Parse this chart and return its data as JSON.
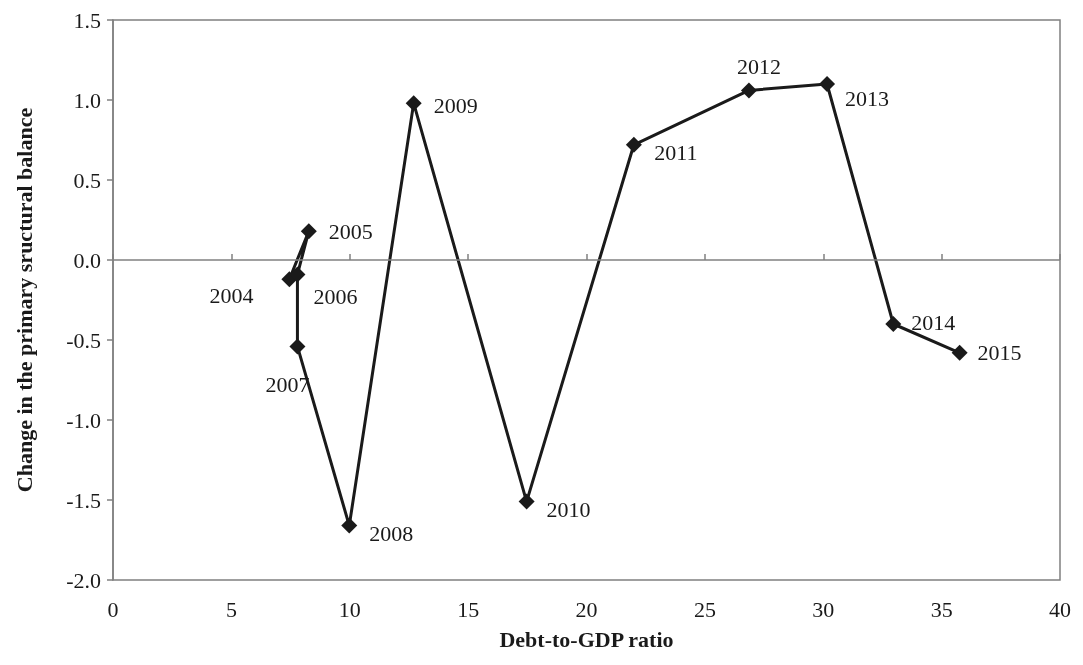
{
  "chart_data": {
    "type": "line",
    "xlabel": "Debt-to-GDP ratio",
    "ylabel": "Change in the primary sructural balance",
    "x": [
      7.45,
      8.27,
      7.79,
      7.79,
      9.98,
      12.7,
      17.47,
      22.0,
      26.86,
      30.16,
      32.96,
      35.76
    ],
    "series": [
      {
        "color": "#1a1a1a",
        "values": [
          -0.12,
          0.18,
          -0.09,
          -0.54,
          -1.66,
          0.98,
          -1.51,
          0.72,
          1.06,
          1.1,
          -0.4,
          -0.58
        ]
      }
    ],
    "annotations": [
      {
        "text": "2004",
        "x": 7.45,
        "y": -0.12
      },
      {
        "text": "2005",
        "x": 8.27,
        "y": 0.18
      },
      {
        "text": "2006",
        "x": 7.79,
        "y": -0.09
      },
      {
        "text": "2007",
        "x": 7.79,
        "y": -0.54
      },
      {
        "text": "2008",
        "x": 9.98,
        "y": -1.66
      },
      {
        "text": "2009",
        "x": 12.7,
        "y": 0.98
      },
      {
        "text": "2010",
        "x": 17.47,
        "y": -1.51
      },
      {
        "text": "2011",
        "x": 22.0,
        "y": 0.72
      },
      {
        "text": "2012",
        "x": 26.86,
        "y": 1.06
      },
      {
        "text": "2013",
        "x": 30.16,
        "y": 1.1
      },
      {
        "text": "2014",
        "x": 32.96,
        "y": -0.4
      },
      {
        "text": "2015",
        "x": 35.76,
        "y": -0.58
      }
    ],
    "ref_lines": [
      {
        "axis": "y",
        "value": 0,
        "color": "#808080"
      }
    ],
    "xlim": [
      0,
      40
    ],
    "xticks": [
      0,
      5,
      10,
      15,
      20,
      25,
      30,
      35,
      40
    ],
    "ylim": [
      -2,
      1.5
    ],
    "yticks": [
      {
        "value": -2,
        "label": "-2.0"
      },
      {
        "value": -1.5,
        "label": "-1.5"
      },
      {
        "value": -1,
        "label": "-1.0"
      },
      {
        "value": -0.5,
        "label": "-0.5"
      },
      {
        "value": 0,
        "label": "0.0"
      },
      {
        "value": 0.5,
        "label": "0.5"
      },
      {
        "value": 1,
        "label": "1.0"
      },
      {
        "value": 1.5,
        "label": "1.5"
      }
    ],
    "marker": "diamond",
    "line_style": "solid"
  }
}
